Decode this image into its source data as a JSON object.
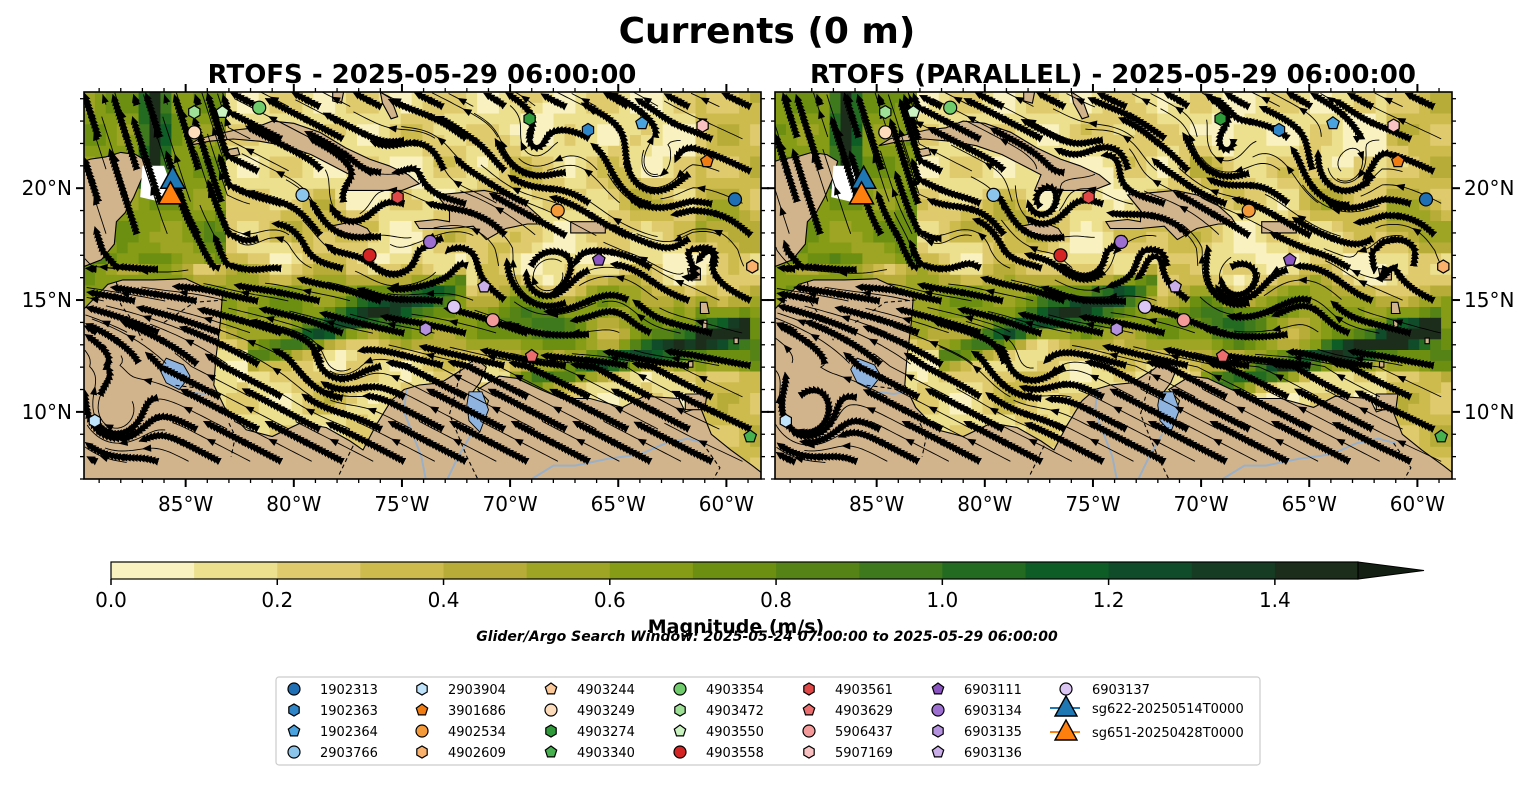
{
  "figure": {
    "title": "Currents (0 m)",
    "panels": [
      {
        "title": "RTOFS - 2025-05-29 06:00:00"
      },
      {
        "title": "RTOFS (PARALLEL) - 2025-05-29 06:00:00"
      }
    ],
    "lon_ticks": [
      {
        "label": "85°W",
        "lon": -85
      },
      {
        "label": "80°W",
        "lon": -80
      },
      {
        "label": "75°W",
        "lon": -75
      },
      {
        "label": "70°W",
        "lon": -70
      },
      {
        "label": "65°W",
        "lon": -65
      },
      {
        "label": "60°W",
        "lon": -60
      }
    ],
    "lat_ticks": [
      {
        "label": "20°N",
        "lat": 20
      },
      {
        "label": "15°N",
        "lat": 15
      },
      {
        "label": "10°N",
        "lat": 10
      }
    ],
    "extent": {
      "lon": [
        -89.7,
        -58.4
      ],
      "lat": [
        7.0,
        24.3
      ]
    },
    "colorbar": {
      "label": "Magnitude (m/s)",
      "min": 0.0,
      "max": 1.5,
      "step": 0.1,
      "extend": "max",
      "ticks": [
        "0.0",
        "0.2",
        "0.4",
        "0.6",
        "0.8",
        "1.0",
        "1.2",
        "1.4"
      ],
      "colors": [
        "#f9f2c0",
        "#ece08e",
        "#dfca6d",
        "#cdbb4e",
        "#b6ac37",
        "#9ea524",
        "#869c16",
        "#6c8f12",
        "#568316",
        "#3e7a1d",
        "#236b21",
        "#0e5c26",
        "#114c2a",
        "#163c24",
        "#1c2e1b"
      ]
    },
    "search_window": "Glider/Argo Search Window: 2025-05-24 07:00:00 to 2025-05-29 06:00:00",
    "colors": {
      "land": "#d2b48c",
      "lake": "#8fb4e0",
      "river": "#9ab0c8"
    }
  },
  "legend": [
    {
      "label": "1902313",
      "marker": "circle",
      "color": "#1f6fb4"
    },
    {
      "label": "1902363",
      "marker": "hexagon",
      "color": "#2e86c8"
    },
    {
      "label": "1902364",
      "marker": "pentagon",
      "color": "#4aa3df"
    },
    {
      "label": "2903766",
      "marker": "circle",
      "color": "#8cc5ec"
    },
    {
      "label": "2903904",
      "marker": "hexagon",
      "color": "#bfe3fb"
    },
    {
      "label": "3901686",
      "marker": "pentagon",
      "color": "#f07c12"
    },
    {
      "label": "4902534",
      "marker": "circle",
      "color": "#f59a38"
    },
    {
      "label": "4902609",
      "marker": "hexagon",
      "color": "#f9b16b"
    },
    {
      "label": "4903244",
      "marker": "pentagon",
      "color": "#fcc99a"
    },
    {
      "label": "4903249",
      "marker": "circle",
      "color": "#fddcbc"
    },
    {
      "label": "4903274",
      "marker": "hexagon",
      "color": "#2e9a3a"
    },
    {
      "label": "4903340",
      "marker": "pentagon",
      "color": "#47b04f"
    },
    {
      "label": "4903354",
      "marker": "circle",
      "color": "#6fcb6b"
    },
    {
      "label": "4903472",
      "marker": "hexagon",
      "color": "#9ee196"
    },
    {
      "label": "4903550",
      "marker": "pentagon",
      "color": "#c9f2c0"
    },
    {
      "label": "4903558",
      "marker": "circle",
      "color": "#d42424"
    },
    {
      "label": "4903561",
      "marker": "hexagon",
      "color": "#e04848"
    },
    {
      "label": "4903629",
      "marker": "pentagon",
      "color": "#ec6e6e"
    },
    {
      "label": "5906437",
      "marker": "circle",
      "color": "#f49a9a"
    },
    {
      "label": "5907169",
      "marker": "hexagon",
      "color": "#f9c1c1"
    },
    {
      "label": "6903111",
      "marker": "pentagon",
      "color": "#8a55c0"
    },
    {
      "label": "6903134",
      "marker": "circle",
      "color": "#9d6fd0"
    },
    {
      "label": "6903135",
      "marker": "hexagon",
      "color": "#b592df"
    },
    {
      "label": "6903136",
      "marker": "pentagon",
      "color": "#caaeea"
    },
    {
      "label": "6903137",
      "marker": "circle",
      "color": "#dcc6f3"
    },
    {
      "label": "sg622-20250514T0000",
      "marker": "triangle",
      "color": "#1f77b4"
    },
    {
      "label": "sg651-20250428T0000",
      "marker": "triangle",
      "color": "#ff7f0e"
    }
  ],
  "panel_markers": [
    [
      {
        "id": "4903472",
        "lon": -84.6,
        "lat": 23.4
      },
      {
        "id": "4903550",
        "lon": -83.3,
        "lat": 23.4
      },
      {
        "id": "4903354",
        "lon": -81.6,
        "lat": 23.6
      },
      {
        "id": "4903249",
        "lon": -84.6,
        "lat": 22.5
      },
      {
        "id": "4903274",
        "lon": -69.1,
        "lat": 23.1
      },
      {
        "id": "1902363",
        "lon": -66.4,
        "lat": 22.6
      },
      {
        "id": "1902364",
        "lon": -63.9,
        "lat": 22.9
      },
      {
        "id": "5907169",
        "lon": -61.1,
        "lat": 22.8
      },
      {
        "id": "3901686",
        "lon": -60.9,
        "lat": 21.2
      },
      {
        "id": "2903766",
        "lon": -79.6,
        "lat": 19.7
      },
      {
        "id": "4903561",
        "lon": -75.2,
        "lat": 19.6
      },
      {
        "id": "4902534",
        "lon": -67.8,
        "lat": 19.0
      },
      {
        "id": "1902313",
        "lon": -59.6,
        "lat": 19.5
      },
      {
        "id": "6903134",
        "lon": -73.7,
        "lat": 17.6
      },
      {
        "id": "4903558",
        "lon": -76.5,
        "lat": 17.0
      },
      {
        "id": "6903111",
        "lon": -65.9,
        "lat": 16.8
      },
      {
        "id": "4902609",
        "lon": -58.8,
        "lat": 16.5
      },
      {
        "id": "6903136",
        "lon": -71.2,
        "lat": 15.6
      },
      {
        "id": "6903137",
        "lon": -72.6,
        "lat": 14.7
      },
      {
        "id": "5906437",
        "lon": -70.8,
        "lat": 14.1
      },
      {
        "id": "6903135",
        "lon": -73.9,
        "lat": 13.7
      },
      {
        "id": "4903629",
        "lon": -69.0,
        "lat": 12.5
      },
      {
        "id": "2903904",
        "lon": -89.2,
        "lat": 9.6
      },
      {
        "id": "4903340",
        "lon": -58.9,
        "lat": 8.9
      }
    ],
    [
      {
        "id": "4903472",
        "lon": -84.6,
        "lat": 23.4
      },
      {
        "id": "4903550",
        "lon": -83.3,
        "lat": 23.4
      },
      {
        "id": "4903354",
        "lon": -81.6,
        "lat": 23.6
      },
      {
        "id": "4903249",
        "lon": -84.6,
        "lat": 22.5
      },
      {
        "id": "4903274",
        "lon": -69.1,
        "lat": 23.1
      },
      {
        "id": "1902363",
        "lon": -66.4,
        "lat": 22.6
      },
      {
        "id": "1902364",
        "lon": -63.9,
        "lat": 22.9
      },
      {
        "id": "5907169",
        "lon": -61.1,
        "lat": 22.8
      },
      {
        "id": "3901686",
        "lon": -60.9,
        "lat": 21.2
      },
      {
        "id": "2903766",
        "lon": -79.6,
        "lat": 19.7
      },
      {
        "id": "4903561",
        "lon": -75.2,
        "lat": 19.6
      },
      {
        "id": "4902534",
        "lon": -67.8,
        "lat": 19.0
      },
      {
        "id": "1902313",
        "lon": -59.6,
        "lat": 19.5
      },
      {
        "id": "6903134",
        "lon": -73.7,
        "lat": 17.6
      },
      {
        "id": "4903558",
        "lon": -76.5,
        "lat": 17.0
      },
      {
        "id": "6903111",
        "lon": -65.9,
        "lat": 16.8
      },
      {
        "id": "4902609",
        "lon": -58.8,
        "lat": 16.5
      },
      {
        "id": "6903136",
        "lon": -71.2,
        "lat": 15.6
      },
      {
        "id": "6903137",
        "lon": -72.6,
        "lat": 14.7
      },
      {
        "id": "5906437",
        "lon": -70.8,
        "lat": 14.1
      },
      {
        "id": "6903135",
        "lon": -73.9,
        "lat": 13.7
      },
      {
        "id": "4903629",
        "lon": -69.0,
        "lat": 12.5
      },
      {
        "id": "2903904",
        "lon": -89.2,
        "lat": 9.6
      },
      {
        "id": "4903340",
        "lon": -58.9,
        "lat": 8.9
      }
    ]
  ],
  "gliders": [
    {
      "id": "sg622-20250514T0000",
      "lon": -85.6,
      "lat": 20.4
    },
    {
      "id": "sg651-20250428T0000",
      "lon": -85.7,
      "lat": 19.7
    }
  ]
}
